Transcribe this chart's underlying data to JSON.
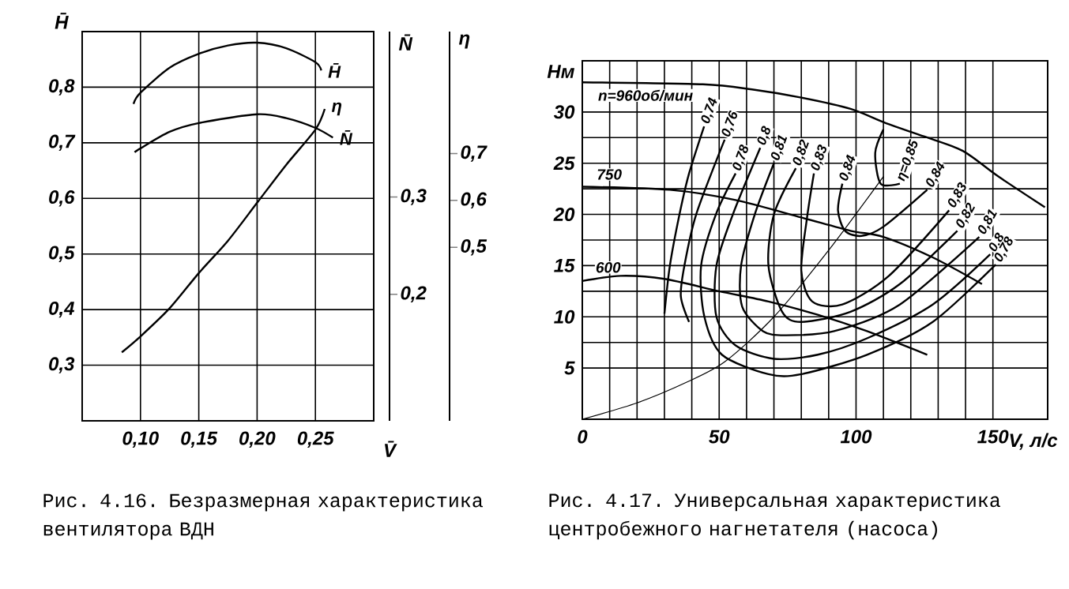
{
  "chart_data": [
    {
      "type": "line",
      "xlabel": "V̄",
      "ylabel": "H̄",
      "y2label": "N̄",
      "y3label": "η",
      "xlim": [
        0.05,
        0.3
      ],
      "ylim": [
        0.2,
        0.9
      ],
      "y2lim": [
        0.07,
        0.47
      ],
      "y3lim": [
        0.13,
        0.96
      ],
      "xticks": [
        {
          "value": 0.1,
          "label": "0,10"
        },
        {
          "value": 0.15,
          "label": "0,15"
        },
        {
          "value": 0.2,
          "label": "0,20"
        },
        {
          "value": 0.25,
          "label": "0,25"
        }
      ],
      "yticks": [
        {
          "value": 0.3,
          "label": "0,3"
        },
        {
          "value": 0.4,
          "label": "0,4"
        },
        {
          "value": 0.5,
          "label": "0,5"
        },
        {
          "value": 0.6,
          "label": "0,6"
        },
        {
          "value": 0.7,
          "label": "0,7"
        },
        {
          "value": 0.8,
          "label": "0,8"
        }
      ],
      "y2ticks": [
        {
          "value": 0.2,
          "label": "0,2"
        },
        {
          "value": 0.3,
          "label": "0,3"
        }
      ],
      "y3ticks": [
        {
          "value": 0.5,
          "label": "0,5"
        },
        {
          "value": 0.6,
          "label": "0,6"
        },
        {
          "value": 0.7,
          "label": "0,7"
        }
      ],
      "grid": true,
      "series": [
        {
          "name": "H̄",
          "color": "#000000",
          "x": [
            0.094,
            0.1,
            0.125,
            0.15,
            0.175,
            0.2,
            0.225,
            0.25,
            0.255
          ],
          "values": [
            0.77,
            0.79,
            0.835,
            0.86,
            0.875,
            0.88,
            0.87,
            0.845,
            0.83
          ]
        },
        {
          "name": "N̄",
          "axis": "y2",
          "color": "#000000",
          "x": [
            0.095,
            0.1,
            0.125,
            0.15,
            0.2,
            0.225,
            0.25,
            0.265
          ],
          "values": [
            0.346,
            0.35,
            0.367,
            0.376,
            0.385,
            0.381,
            0.371,
            0.361
          ]
        },
        {
          "name": "η",
          "axis": "y3",
          "color": "#000000",
          "x": [
            0.084,
            0.1,
            0.125,
            0.15,
            0.175,
            0.2,
            0.225,
            0.25,
            0.258
          ],
          "values": [
            0.276,
            0.31,
            0.37,
            0.445,
            0.514,
            0.595,
            0.676,
            0.751,
            0.795
          ]
        }
      ],
      "annotations": [
        "Рис. 4.16. Безразмерная характеристика вентилятора ВДН"
      ]
    },
    {
      "type": "line",
      "xlabel": "V, л/с",
      "ylabel": "Hм",
      "xlim": [
        0,
        170
      ],
      "ylim": [
        0,
        35
      ],
      "xticks": [
        0,
        50,
        100,
        150
      ],
      "yticks": [
        5,
        10,
        15,
        20,
        25,
        30
      ],
      "grid": true,
      "series": [
        {
          "name": "n=960об/мин",
          "color": "#000000",
          "x": [
            0,
            44,
            62,
            80,
            98,
            111,
            125,
            139,
            152,
            169
          ],
          "values": [
            32.9,
            32.7,
            32.2,
            31.4,
            30.3,
            28.9,
            27.6,
            26.2,
            23.7,
            20.7
          ]
        },
        {
          "name": "750",
          "color": "#000000",
          "x": [
            0,
            32,
            56,
            80,
            98,
            110,
            128,
            146
          ],
          "values": [
            22.7,
            22.4,
            21.4,
            19.7,
            18.4,
            17.8,
            15.8,
            13.2
          ]
        },
        {
          "name": "600",
          "color": "#000000",
          "x": [
            0,
            14,
            30,
            50,
            68,
            86,
            104,
            126
          ],
          "values": [
            13.5,
            14.0,
            13.7,
            12.5,
            11.5,
            10.2,
            8.6,
            6.3
          ]
        },
        {
          "color": "#000000",
          "x": [
            0,
            20,
            38,
            52,
            70,
            90,
            110
          ],
          "values": [
            0,
            1.6,
            3.6,
            5.6,
            10,
            16.5,
            23.7
          ]
        },
        {
          "name": "0,74",
          "color": "#000000",
          "x": [
            44.5,
            39,
            35.5,
            32,
            30
          ],
          "values": [
            28.6,
            24,
            20,
            15,
            10.3
          ]
        },
        {
          "name": "0,76",
          "color": "#000000",
          "x": [
            52,
            41.6,
            37.3,
            36,
            39
          ],
          "values": [
            27.3,
            20,
            15,
            12,
            9.5
          ]
        },
        {
          "name": "0,78",
          "color": "#000000",
          "x": [
            56,
            48.8,
            43.4,
            44.6,
            51,
            68,
            80,
            104,
            128,
            151
          ],
          "values": [
            24,
            20,
            15,
            10,
            6.3,
            4.4,
            4.4,
            6.3,
            9.5,
            15.1
          ]
        },
        {
          "name": "0,8",
          "color": "#000000",
          "x": [
            65,
            55,
            49,
            49,
            56,
            70,
            86,
            104,
            128,
            149
          ],
          "values": [
            26.5,
            20,
            15,
            10,
            7.2,
            5.9,
            6.3,
            7.9,
            11.2,
            16.1
          ]
        },
        {
          "name": "0,81",
          "color": "#000000",
          "x": [
            70,
            63,
            58,
            58.4,
            66,
            74,
            92,
            116,
            145
          ],
          "values": [
            25,
            20,
            15,
            11,
            8.6,
            8.2,
            8.6,
            11.2,
            17.8
          ]
        },
        {
          "name": "0,82",
          "color": "#000000",
          "x": [
            78,
            70,
            68,
            73,
            80,
            98,
            116,
            137
          ],
          "values": [
            24.5,
            20,
            15,
            10.5,
            9.5,
            10.5,
            13.2,
            18.4
          ]
        },
        {
          "name": "0,83",
          "color": "#000000",
          "x": [
            84.6,
            82,
            80,
            84,
            95,
            112,
            134
          ],
          "values": [
            24,
            19.5,
            14.5,
            11.5,
            11.2,
            14,
            20.4
          ]
        },
        {
          "name": "0,84",
          "color": "#000000",
          "x": [
            95,
            93.4,
            96,
            102,
            110,
            126
          ],
          "values": [
            23,
            20.4,
            18.4,
            17.9,
            18.8,
            22.4
          ]
        },
        {
          "name": "η=0,85",
          "color": "#000000",
          "x": [
            116,
            109,
            107,
            110
          ],
          "values": [
            23,
            23,
            26,
            28.3
          ]
        }
      ],
      "annotations": [
        "Рис. 4.17. Универсальная характеристика центробежного нагнетателя (насоса)",
        {
          "text": "0,84",
          "x": 126,
          "y": 22.4
        },
        {
          "text": "0,83",
          "x": 134,
          "y": 20.4
        },
        {
          "text": "0,82",
          "x": 137,
          "y": 18.4
        },
        {
          "text": "0,81",
          "x": 145,
          "y": 17.8
        },
        {
          "text": "0,8",
          "x": 149,
          "y": 16.1
        },
        {
          "text": "0,78",
          "x": 151,
          "y": 15.1
        }
      ]
    }
  ]
}
